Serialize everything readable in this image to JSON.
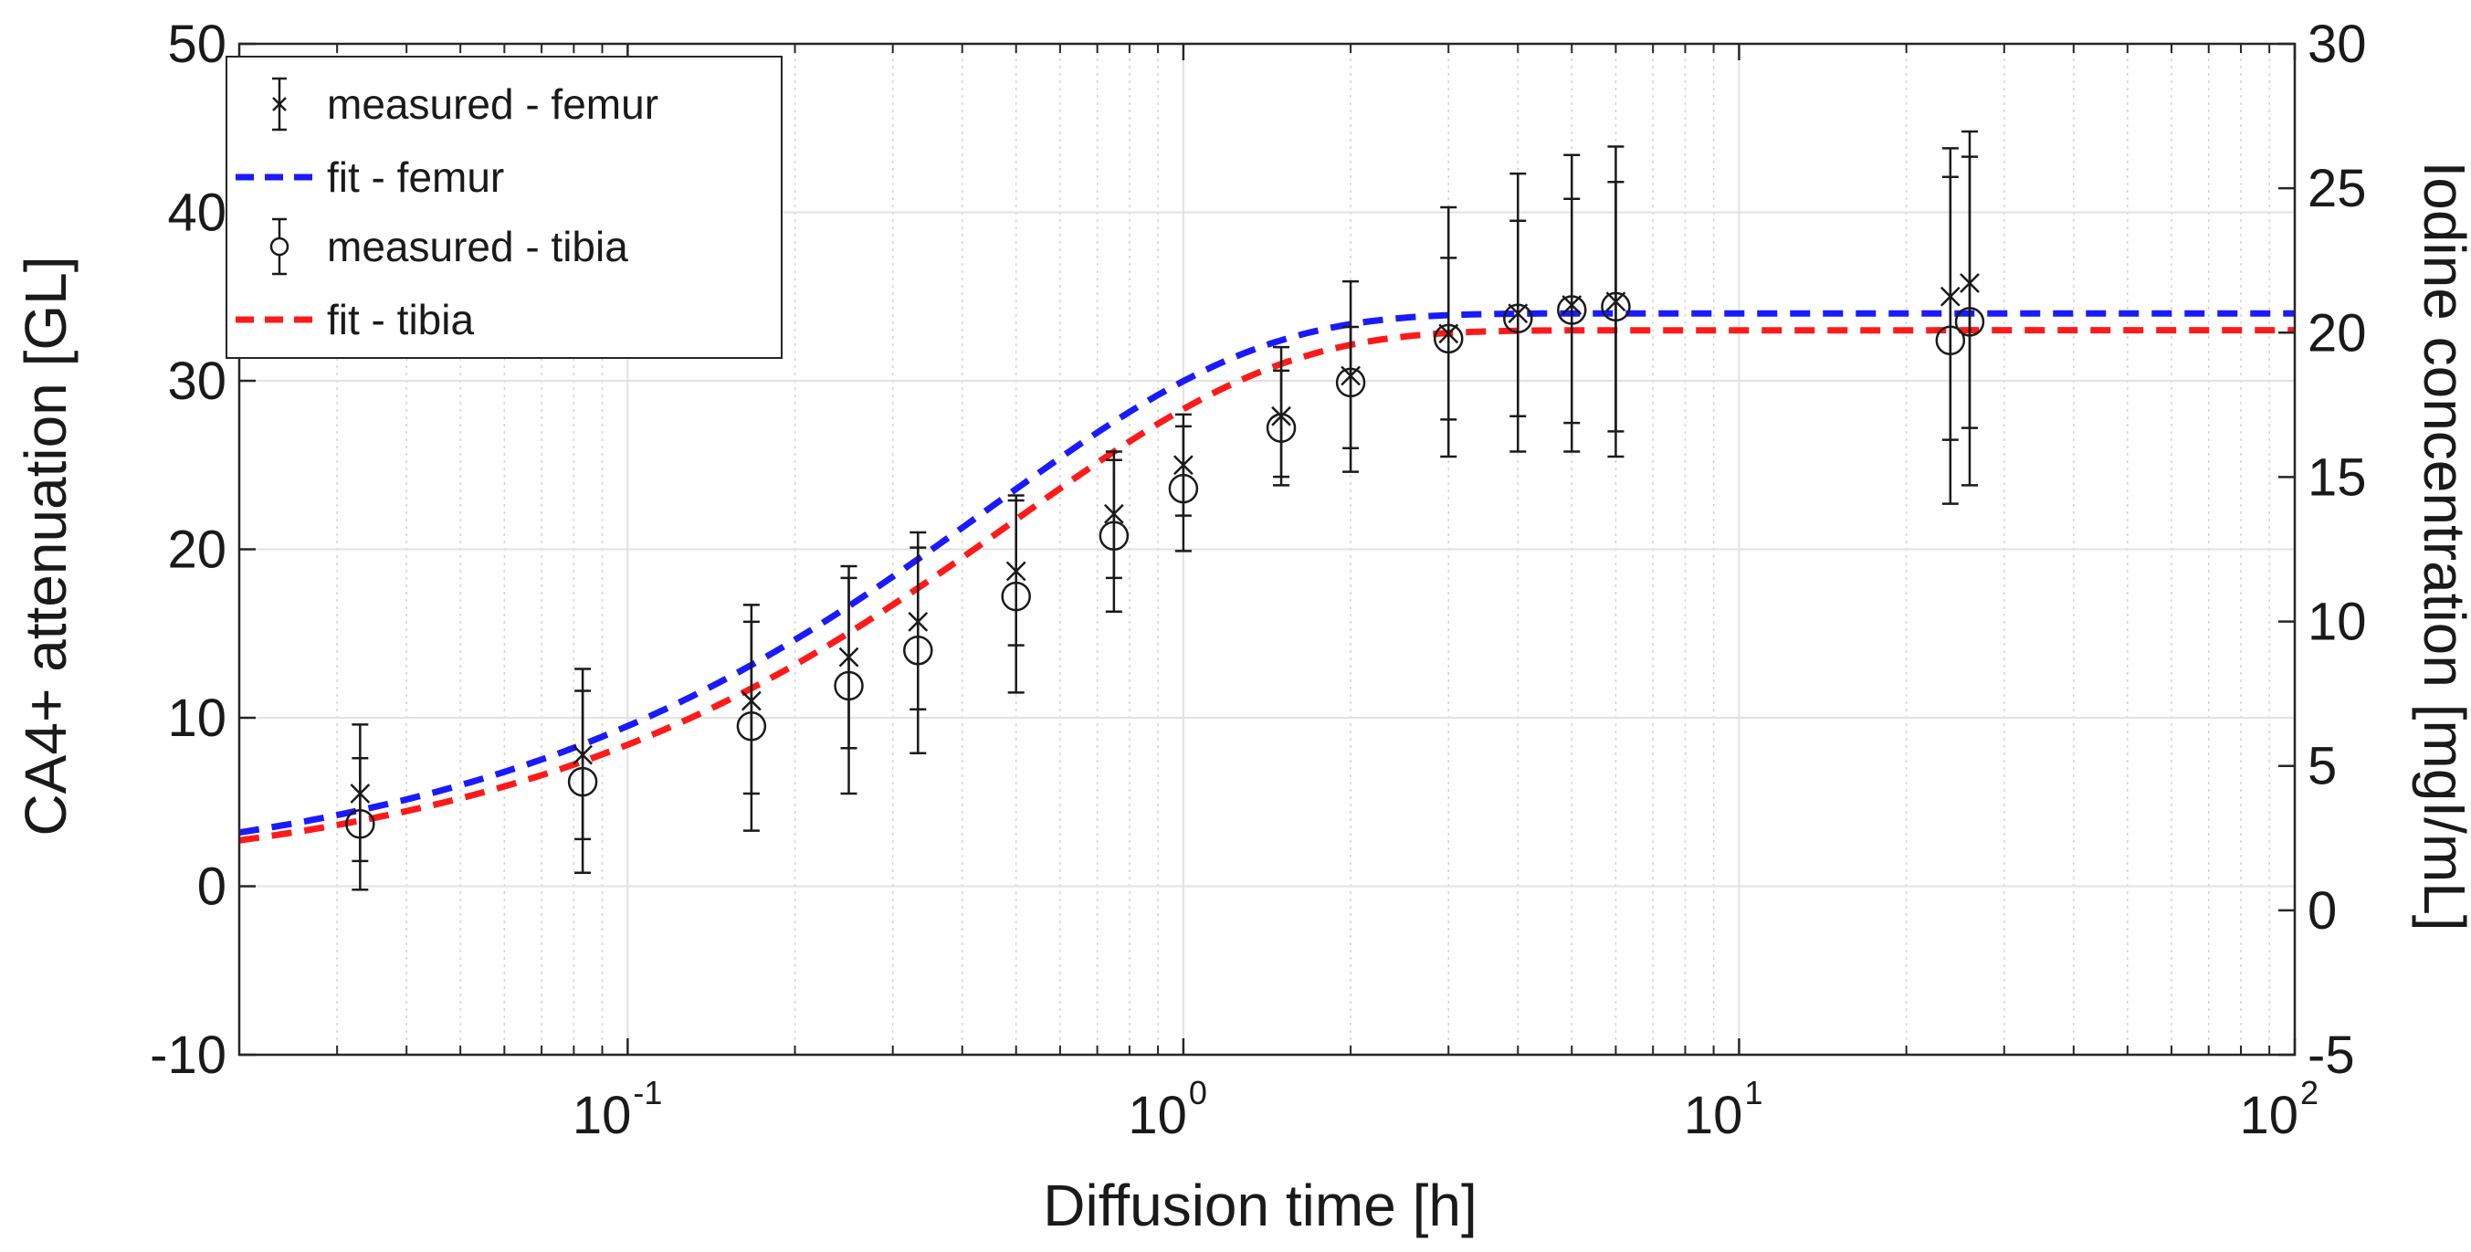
{
  "chart_data": {
    "type": "line",
    "x_scale": "log",
    "xlim": [
      0.02,
      100
    ],
    "ylim": [
      -10,
      50
    ],
    "y2lim": [
      -5,
      30
    ],
    "xlabel": "Diffusion time [h]",
    "ylabel": "CA4+ attenuation [GL]",
    "y2label": "Iodine concentration [mgI/mL]",
    "x_ticks": [
      {
        "value": 0.1,
        "base": "10",
        "exp": "-1"
      },
      {
        "value": 1,
        "base": "10",
        "exp": "0"
      },
      {
        "value": 10,
        "base": "10",
        "exp": "1"
      },
      {
        "value": 100,
        "base": "10",
        "exp": "2"
      }
    ],
    "y_ticks": [
      "-10",
      "0",
      "10",
      "20",
      "30",
      "40",
      "50"
    ],
    "y2_ticks": [
      "-5",
      "0",
      "5",
      "10",
      "15",
      "20",
      "25",
      "30"
    ],
    "grid": true,
    "legend_position": "top-left",
    "legend": [
      {
        "label": "measured - femur",
        "style": "errorbar-x-marker"
      },
      {
        "label": "fit - femur",
        "style": "dashed",
        "color": "#1a1aff"
      },
      {
        "label": "measured - tibia",
        "style": "errorbar-circle-marker"
      },
      {
        "label": "fit - tibia",
        "style": "dashed",
        "color": "#ff1a1a"
      }
    ],
    "series": [
      {
        "name": "measured - femur",
        "marker": "x",
        "color": "#1a1a1a",
        "points": [
          {
            "x": 0.033,
            "y": 5.5,
            "err_low": 1.5,
            "err_high": 9.6
          },
          {
            "x": 0.083,
            "y": 7.8,
            "err_low": 2.8,
            "err_high": 12.9
          },
          {
            "x": 0.167,
            "y": 11.0,
            "err_low": 5.5,
            "err_high": 16.7
          },
          {
            "x": 0.25,
            "y": 13.6,
            "err_low": 8.2,
            "err_high": 19.0
          },
          {
            "x": 0.333,
            "y": 15.7,
            "err_low": 10.5,
            "err_high": 21.0
          },
          {
            "x": 0.5,
            "y": 18.7,
            "err_low": 14.3,
            "err_high": 23.2
          },
          {
            "x": 0.75,
            "y": 22.1,
            "err_low": 18.3,
            "err_high": 25.8
          },
          {
            "x": 1.0,
            "y": 25.0,
            "err_low": 22.0,
            "err_high": 28.0
          },
          {
            "x": 1.5,
            "y": 27.9,
            "err_low": 24.3,
            "err_high": 32.0
          },
          {
            "x": 2.0,
            "y": 30.3,
            "err_low": 26.0,
            "err_high": 35.9
          },
          {
            "x": 3.0,
            "y": 32.8,
            "err_low": 25.5,
            "err_high": 40.3
          },
          {
            "x": 4.0,
            "y": 34.0,
            "err_low": 25.8,
            "err_high": 42.3
          },
          {
            "x": 5.0,
            "y": 34.5,
            "err_low": 25.8,
            "err_high": 43.4
          },
          {
            "x": 6.0,
            "y": 34.7,
            "err_low": 25.5,
            "err_high": 43.9
          },
          {
            "x": 24.0,
            "y": 35.0,
            "err_low": 26.5,
            "err_high": 43.8
          },
          {
            "x": 26.0,
            "y": 35.8,
            "err_low": 27.2,
            "err_high": 44.8
          }
        ]
      },
      {
        "name": "measured - tibia",
        "marker": "o",
        "color": "#1a1a1a",
        "points": [
          {
            "x": 0.033,
            "y": 3.7,
            "err_low": -0.2,
            "err_high": 7.6
          },
          {
            "x": 0.083,
            "y": 6.2,
            "err_low": 0.8,
            "err_high": 11.6
          },
          {
            "x": 0.167,
            "y": 9.5,
            "err_low": 3.3,
            "err_high": 15.7
          },
          {
            "x": 0.25,
            "y": 11.9,
            "err_low": 5.5,
            "err_high": 18.3
          },
          {
            "x": 0.333,
            "y": 14.0,
            "err_low": 7.9,
            "err_high": 20.1
          },
          {
            "x": 0.5,
            "y": 17.2,
            "err_low": 11.5,
            "err_high": 22.9
          },
          {
            "x": 0.75,
            "y": 20.8,
            "err_low": 16.3,
            "err_high": 25.3
          },
          {
            "x": 1.0,
            "y": 23.6,
            "err_low": 19.9,
            "err_high": 27.3
          },
          {
            "x": 1.5,
            "y": 27.2,
            "err_low": 23.8,
            "err_high": 30.6
          },
          {
            "x": 2.0,
            "y": 29.9,
            "err_low": 24.6,
            "err_high": 33.2
          },
          {
            "x": 3.0,
            "y": 32.5,
            "err_low": 27.7,
            "err_high": 37.3
          },
          {
            "x": 4.0,
            "y": 33.7,
            "err_low": 27.9,
            "err_high": 39.5
          },
          {
            "x": 5.0,
            "y": 34.2,
            "err_low": 27.5,
            "err_high": 40.8
          },
          {
            "x": 6.0,
            "y": 34.4,
            "err_low": 27.0,
            "err_high": 41.8
          },
          {
            "x": 24.0,
            "y": 32.4,
            "err_low": 22.7,
            "err_high": 42.1
          },
          {
            "x": 26.0,
            "y": 33.5,
            "err_low": 23.8,
            "err_high": 43.3
          }
        ]
      },
      {
        "name": "fit - femur",
        "style": "dashed",
        "color": "#1a1aff",
        "model": "A*(1-exp(-t/tau))^n",
        "params": {
          "A": 34.0,
          "tau": 0.55,
          "n": 0.71
        }
      },
      {
        "name": "fit - tibia",
        "style": "dashed",
        "color": "#ff1a1a",
        "model": "A*(1-exp(-t/tau))^n",
        "params": {
          "A": 33.0,
          "tau": 0.6,
          "n": 0.73
        }
      }
    ]
  }
}
